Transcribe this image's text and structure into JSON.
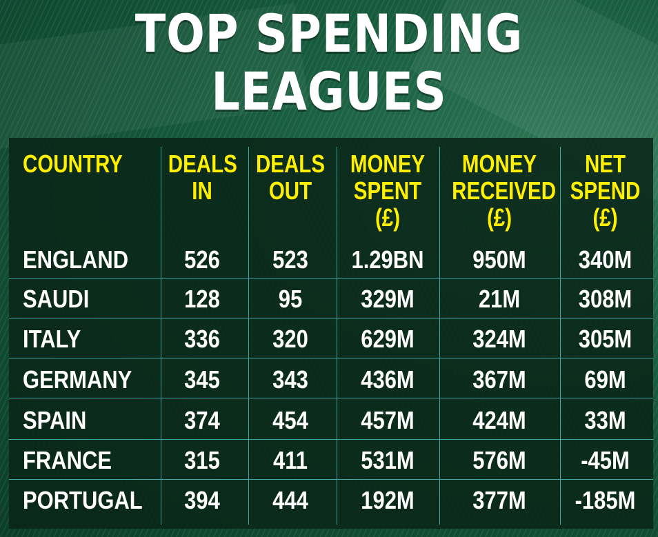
{
  "title": {
    "line1": "TOP SPENDING",
    "line2": "LEAGUES"
  },
  "chart_data": {
    "type": "table",
    "title": "TOP SPENDING LEAGUES",
    "columns": [
      "COUNTRY",
      "DEALS\nIN",
      "DEALS\nOUT",
      "MONEY\nSPENT\n(£)",
      "MONEY\nRECEIVED\n(£)",
      "NET\nSPEND\n(£)"
    ],
    "rows": [
      [
        "ENGLAND",
        "526",
        "523",
        "1.29BN",
        "950M",
        "340M"
      ],
      [
        "SAUDI",
        "128",
        "95",
        "329M",
        "21M",
        "308M"
      ],
      [
        "ITALY",
        "336",
        "320",
        "629M",
        "324M",
        "305M"
      ],
      [
        "GERMANY",
        "345",
        "343",
        "436M",
        "367M",
        "69M"
      ],
      [
        "SPAIN",
        "374",
        "454",
        "457M",
        "424M",
        "33M"
      ],
      [
        "FRANCE",
        "315",
        "411",
        "531M",
        "576M",
        "-45M"
      ],
      [
        "PORTUGAL",
        "394",
        "444",
        "192M",
        "377M",
        "-185M"
      ]
    ]
  },
  "colors": {
    "header_text": "#ffef00",
    "cell_text": "#ffffff",
    "grid_lines": "#3fa6a0",
    "panel": "#0a2618",
    "background": "#175c3e"
  }
}
